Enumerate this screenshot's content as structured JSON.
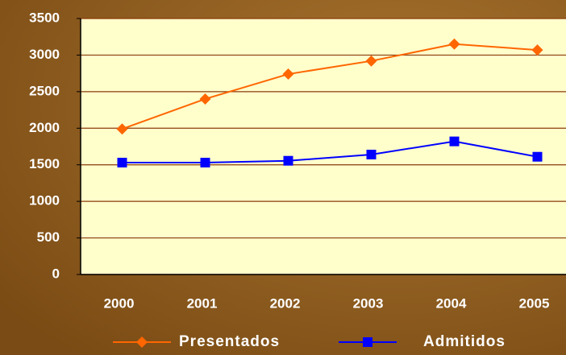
{
  "chart_data": {
    "type": "line",
    "categories": [
      "2000",
      "2001",
      "2002",
      "2003",
      "2004",
      "2005"
    ],
    "series": [
      {
        "name": "Presentados",
        "color": "#ff6600",
        "marker": "diamond",
        "values": [
          1990,
          2400,
          2740,
          2920,
          3150,
          3070
        ]
      },
      {
        "name": "Admitidos",
        "color": "#0000ff",
        "marker": "square",
        "values": [
          1530,
          1530,
          1555,
          1640,
          1820,
          1610
        ]
      }
    ],
    "ylim": [
      0,
      3500
    ],
    "yticks": [
      0,
      500,
      1000,
      1500,
      2000,
      2500,
      3000,
      3500
    ],
    "grid": true
  }
}
